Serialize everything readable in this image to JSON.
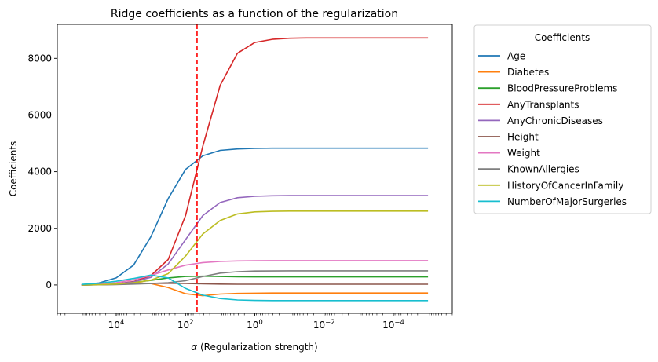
{
  "chart_data": {
    "type": "line",
    "title": "Ridge coefficients as a function of the regularization",
    "xlabel": "α (Regularization strength)",
    "xlabel_symbol": "α",
    "xlabel_rest": " (Regularization strength)",
    "ylabel": "Coefficients",
    "xscale": "log",
    "x_reversed": true,
    "xlim_log10": [
      5.7,
      -5.7
    ],
    "ylim": [
      -1000,
      9200
    ],
    "x_ticks": [
      {
        "log10": 4,
        "base": "10",
        "exp": "4"
      },
      {
        "log10": 2,
        "base": "10",
        "exp": "2"
      },
      {
        "log10": 0,
        "base": "10",
        "exp": "0"
      },
      {
        "log10": -2,
        "base": "10",
        "exp": "−2"
      },
      {
        "log10": -4,
        "base": "10",
        "exp": "−4"
      }
    ],
    "y_ticks": [
      0,
      2000,
      4000,
      6000,
      8000
    ],
    "vline": {
      "log10": 1.667,
      "color": "#ff0000",
      "style": "dashed"
    },
    "legend_title": "Coefficients",
    "legend_position": "outside-right",
    "grid": false,
    "x_log10": [
      5,
      4.5,
      4,
      3.5,
      3,
      2.5,
      2,
      1.5,
      1,
      0.5,
      0,
      -0.5,
      -1,
      -1.5,
      -2,
      -2.5,
      -3,
      -3.5,
      -4,
      -4.5,
      -5
    ],
    "series": [
      {
        "name": "Age",
        "color": "#1f77b4",
        "values": [
          10,
          70,
          250,
          700,
          1700,
          3050,
          4080,
          4560,
          4750,
          4800,
          4820,
          4830,
          4830,
          4830,
          4830,
          4830,
          4830,
          4830,
          4830,
          4830,
          4830
        ]
      },
      {
        "name": "Diabetes",
        "color": "#ff7f0e",
        "values": [
          0,
          20,
          60,
          80,
          50,
          -90,
          -310,
          -380,
          -320,
          -300,
          -290,
          -285,
          -285,
          -285,
          -285,
          -285,
          -285,
          -285,
          -285,
          -285,
          -285
        ]
      },
      {
        "name": "BloodPressureProblems",
        "color": "#2ca02c",
        "values": [
          0,
          10,
          40,
          90,
          160,
          250,
          300,
          310,
          300,
          290,
          285,
          285,
          285,
          285,
          285,
          285,
          285,
          285,
          285,
          285,
          285
        ]
      },
      {
        "name": "AnyTransplants",
        "color": "#d62728",
        "values": [
          0,
          10,
          40,
          120,
          330,
          900,
          2450,
          4900,
          7050,
          8180,
          8560,
          8670,
          8710,
          8720,
          8720,
          8720,
          8720,
          8720,
          8720,
          8720,
          8720
        ]
      },
      {
        "name": "AnyChronicDiseases",
        "color": "#9467bd",
        "values": [
          0,
          10,
          40,
          110,
          270,
          740,
          1600,
          2450,
          2910,
          3080,
          3130,
          3150,
          3155,
          3155,
          3155,
          3155,
          3155,
          3155,
          3155,
          3155,
          3155
        ]
      },
      {
        "name": "Height",
        "color": "#8c564b",
        "values": [
          0,
          5,
          20,
          40,
          55,
          60,
          55,
          40,
          30,
          25,
          25,
          25,
          25,
          25,
          25,
          25,
          25,
          25,
          25,
          25,
          25
        ]
      },
      {
        "name": "Weight",
        "color": "#e377c2",
        "values": [
          0,
          20,
          80,
          180,
          340,
          530,
          700,
          790,
          830,
          850,
          855,
          860,
          860,
          860,
          860,
          860,
          860,
          860,
          860,
          860,
          860
        ]
      },
      {
        "name": "KnownAllergies",
        "color": "#7f7f7f",
        "values": [
          0,
          5,
          15,
          30,
          50,
          80,
          150,
          300,
          420,
          470,
          490,
          495,
          500,
          500,
          500,
          500,
          500,
          500,
          500,
          500,
          500
        ]
      },
      {
        "name": "HistoryOfCancerInFamily",
        "color": "#bcbd22",
        "values": [
          0,
          10,
          30,
          80,
          170,
          400,
          1020,
          1800,
          2280,
          2510,
          2580,
          2600,
          2610,
          2610,
          2610,
          2610,
          2610,
          2610,
          2610,
          2610,
          2610
        ]
      },
      {
        "name": "NumberOfMajorSurgeries",
        "color": "#17becf",
        "values": [
          20,
          60,
          130,
          230,
          350,
          250,
          -120,
          -360,
          -480,
          -530,
          -545,
          -550,
          -550,
          -550,
          -550,
          -550,
          -550,
          -550,
          -550,
          -550,
          -550
        ]
      }
    ]
  }
}
